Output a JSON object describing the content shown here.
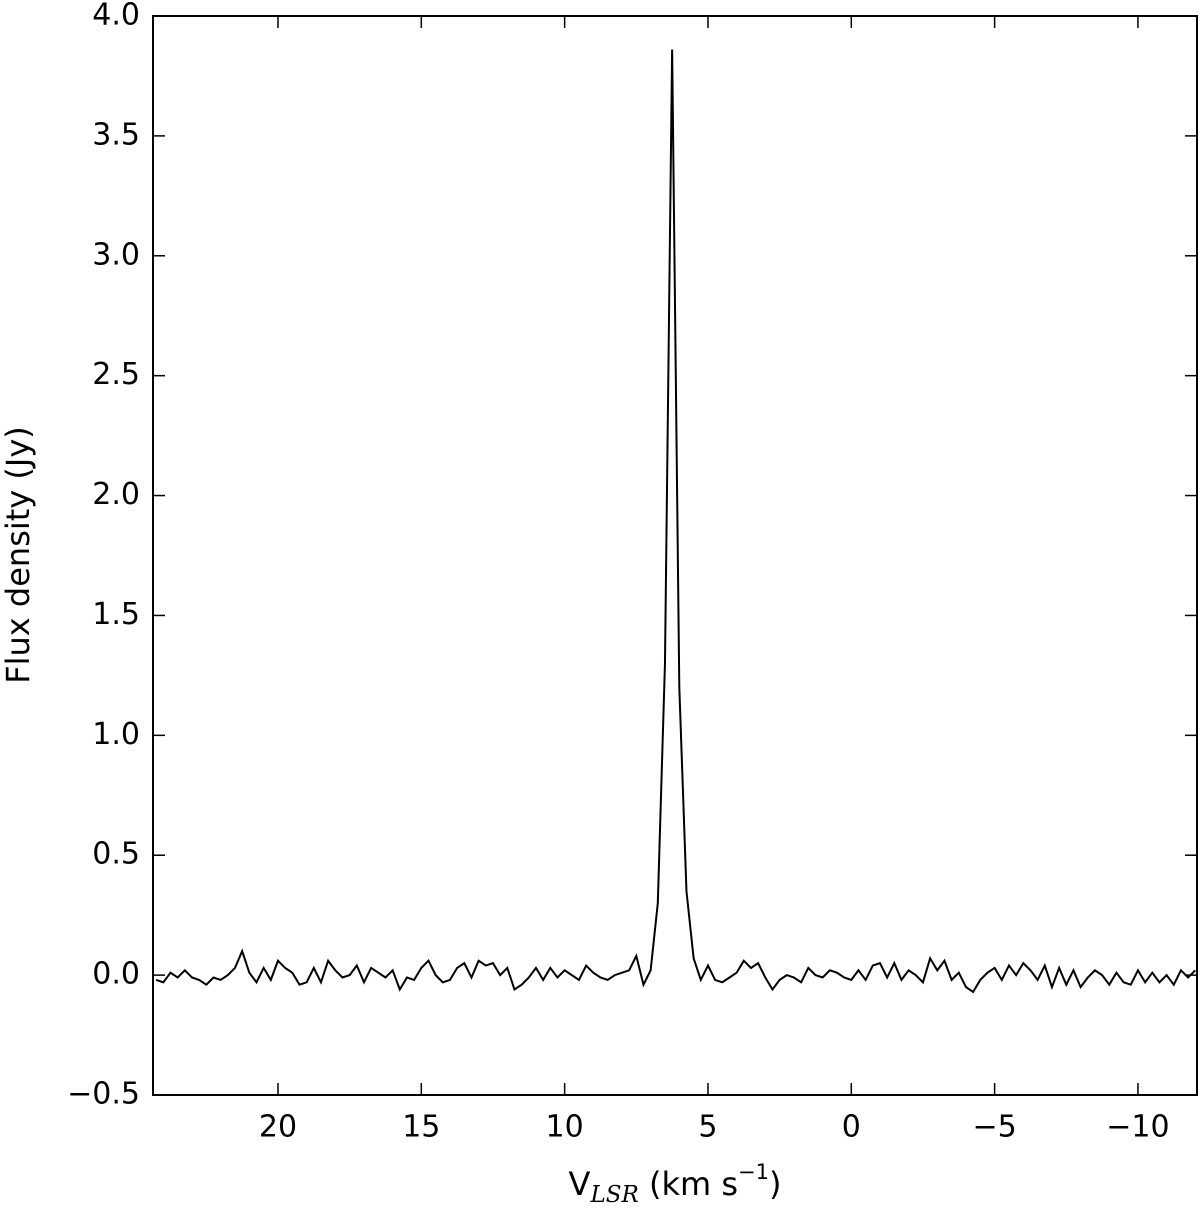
{
  "chart_data": {
    "type": "line",
    "xlabel": [
      "V",
      "LSR",
      " (km s",
      "−1",
      ")"
    ],
    "ylabel": "Flux density (Jy)",
    "color": "#000000",
    "xlim": [
      24.36,
      -12.06
    ],
    "ylim": [
      -0.5,
      4.0
    ],
    "xticks": [
      20,
      15,
      10,
      5,
      0,
      {
        "value": -5,
        "label": "−5"
      },
      {
        "value": -10,
        "label": "−10"
      }
    ],
    "yticks": [
      {
        "value": -0.5,
        "label": "−0.5"
      },
      {
        "value": 0,
        "label": "0.0"
      },
      0.5,
      {
        "value": 1,
        "label": "1.0"
      },
      1.5,
      {
        "value": 2,
        "label": "2.0"
      },
      2.5,
      {
        "value": 3,
        "label": "3.0"
      },
      3.5,
      {
        "value": 4,
        "label": "4.0"
      }
    ],
    "x": [
      24.25,
      24,
      23.75,
      23.5,
      23.25,
      23,
      22.75,
      22.5,
      22.25,
      22,
      21.75,
      21.5,
      21.25,
      21,
      20.75,
      20.5,
      20.25,
      20,
      19.75,
      19.5,
      19.25,
      19,
      18.75,
      18.5,
      18.25,
      18,
      17.75,
      17.5,
      17.25,
      17,
      16.75,
      16.5,
      16.25,
      16,
      15.75,
      15.5,
      15.25,
      15,
      14.75,
      14.5,
      14.25,
      14,
      13.75,
      13.5,
      13.25,
      13,
      12.75,
      12.5,
      12.25,
      12,
      11.75,
      11.5,
      11.25,
      11,
      10.75,
      10.5,
      10.25,
      10,
      9.75,
      9.5,
      9.25,
      9,
      8.75,
      8.5,
      8.25,
      8,
      7.75,
      7.5,
      7.25,
      7,
      6.75,
      6.5,
      6.25,
      6,
      5.75,
      5.5,
      5.25,
      5,
      4.75,
      4.5,
      4.25,
      4,
      3.75,
      3.5,
      3.25,
      3,
      2.75,
      2.5,
      2.25,
      2,
      1.75,
      1.5,
      1.25,
      1,
      0.75,
      0.5,
      0.25,
      0,
      -0.25,
      -0.5,
      -0.75,
      -1,
      -1.25,
      -1.5,
      -1.75,
      -2,
      -2.25,
      -2.5,
      -2.75,
      -3,
      -3.25,
      -3.5,
      -3.75,
      -4,
      -4.25,
      -4.5,
      -4.75,
      -5,
      -5.25,
      -5.5,
      -5.75,
      -6,
      -6.25,
      -6.5,
      -6.75,
      -7,
      -7.25,
      -7.5,
      -7.75,
      -8,
      -8.25,
      -8.5,
      -8.75,
      -9,
      -9.25,
      -9.5,
      -9.75,
      -10,
      -10.25,
      -10.5,
      -10.75,
      -11,
      -11.25,
      -11.5,
      -11.75,
      -12
    ],
    "values": [
      -0.02,
      -0.03,
      0.01,
      -0.01,
      0.02,
      -0.01,
      -0.02,
      -0.04,
      -0.01,
      -0.02,
      0.0,
      0.03,
      0.1,
      0.01,
      -0.03,
      0.03,
      -0.02,
      0.06,
      0.03,
      0.01,
      -0.04,
      -0.03,
      0.03,
      -0.03,
      0.06,
      0.02,
      -0.01,
      0.0,
      0.04,
      -0.03,
      0.03,
      0.01,
      -0.01,
      0.02,
      -0.06,
      -0.01,
      -0.02,
      0.03,
      0.06,
      0.0,
      -0.03,
      -0.02,
      0.03,
      0.05,
      -0.01,
      0.06,
      0.04,
      0.05,
      0.0,
      0.03,
      -0.06,
      -0.04,
      -0.01,
      0.03,
      -0.02,
      0.03,
      -0.01,
      0.02,
      0.0,
      -0.02,
      0.04,
      0.01,
      -0.01,
      -0.02,
      0.0,
      0.01,
      0.02,
      0.08,
      -0.04,
      0.02,
      0.3,
      1.3,
      3.86,
      1.2,
      0.35,
      0.07,
      -0.02,
      0.04,
      -0.02,
      -0.03,
      -0.01,
      0.01,
      0.06,
      0.03,
      0.05,
      -0.01,
      -0.06,
      -0.02,
      0.0,
      -0.01,
      -0.03,
      0.03,
      0.0,
      -0.01,
      0.02,
      0.01,
      -0.01,
      -0.02,
      0.02,
      -0.02,
      0.04,
      0.05,
      -0.01,
      0.05,
      -0.02,
      0.02,
      0.0,
      -0.03,
      0.07,
      0.02,
      0.06,
      -0.02,
      0.01,
      -0.05,
      -0.07,
      -0.02,
      0.01,
      0.03,
      -0.02,
      0.04,
      0.0,
      0.05,
      0.02,
      -0.02,
      0.04,
      -0.05,
      0.03,
      -0.04,
      0.02,
      -0.05,
      -0.01,
      0.02,
      0.0,
      -0.04,
      0.01,
      -0.03,
      -0.04,
      0.02,
      -0.03,
      0.01,
      -0.03,
      0.0,
      -0.04,
      0.02,
      -0.01,
      0.02
    ]
  }
}
